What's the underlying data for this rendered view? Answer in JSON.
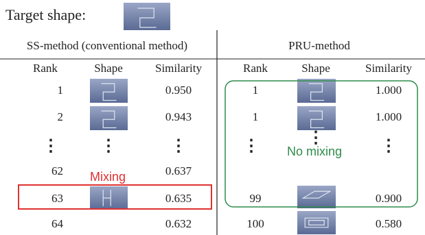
{
  "title": "Target shape:",
  "table": {
    "groups": [
      "SS-method (conventional method)",
      "PRU-method"
    ],
    "columns": [
      "Rank",
      "Shape",
      "Similarity",
      "Rank",
      "Shape",
      "Similarity"
    ],
    "rows": [
      {
        "ss": {
          "rank": "1",
          "similarity": "0.950"
        },
        "pru": {
          "rank": "1",
          "similarity": "1.000"
        }
      },
      {
        "ss": {
          "rank": "2",
          "similarity": "0.943"
        },
        "pru": {
          "rank": "1",
          "similarity": "1.000"
        }
      },
      {
        "ss": {
          "rank": "⋮",
          "shape": "⋮",
          "similarity": "⋮"
        },
        "pru": {
          "rank": "⋮",
          "shape": "⋮",
          "similarity": "⋮"
        }
      },
      {
        "ss": {
          "rank": "62",
          "similarity": "0.637"
        }
      },
      {
        "ss": {
          "rank": "63",
          "similarity": "0.635"
        },
        "pru": {
          "rank": "99",
          "similarity": "0.900"
        }
      },
      {
        "ss": {
          "rank": "64",
          "similarity": "0.632"
        },
        "pru": {
          "rank": "100",
          "similarity": "0.580"
        }
      }
    ]
  },
  "annotations": {
    "mixing": "Mixing",
    "no_mixing": "No mixing"
  }
}
